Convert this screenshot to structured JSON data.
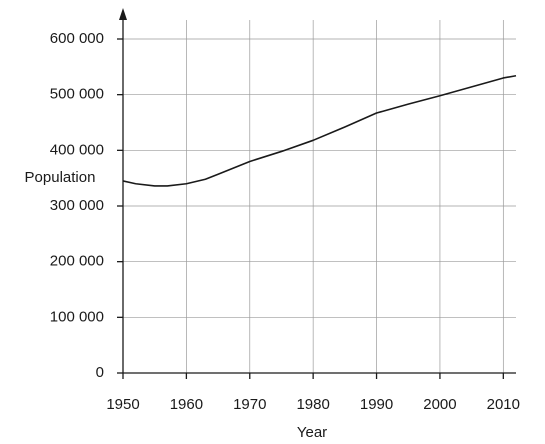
{
  "chart_data": {
    "type": "line",
    "x_label": "Year",
    "y_label": "Population",
    "x": [
      1950,
      1952,
      1955,
      1957,
      1960,
      1963,
      1965,
      1970,
      1975,
      1980,
      1985,
      1990,
      1995,
      2000,
      2005,
      2010,
      2012
    ],
    "series": [
      {
        "name": "Population",
        "color": "#1a1a1a",
        "values": [
          345000,
          340000,
          336000,
          336000,
          340000,
          348000,
          357000,
          380000,
          398000,
          418000,
          442000,
          467000,
          483000,
          498000,
          514000,
          530000,
          534000
        ]
      }
    ],
    "xlim": [
      1950,
      2012
    ],
    "xticks": [
      1950,
      1960,
      1970,
      1980,
      1990,
      2000,
      2010
    ],
    "ylim": [
      0,
      600000
    ],
    "yticks": [
      0,
      {
        "value": 100000,
        "label": "100 000"
      },
      {
        "value": 200000,
        "label": "200 000"
      },
      {
        "value": 300000,
        "label": "300 000"
      },
      {
        "value": 400000,
        "label": "400 000"
      },
      {
        "value": 500000,
        "label": "500 000"
      },
      {
        "value": 600000,
        "label": "600 000"
      }
    ],
    "grid": true
  }
}
